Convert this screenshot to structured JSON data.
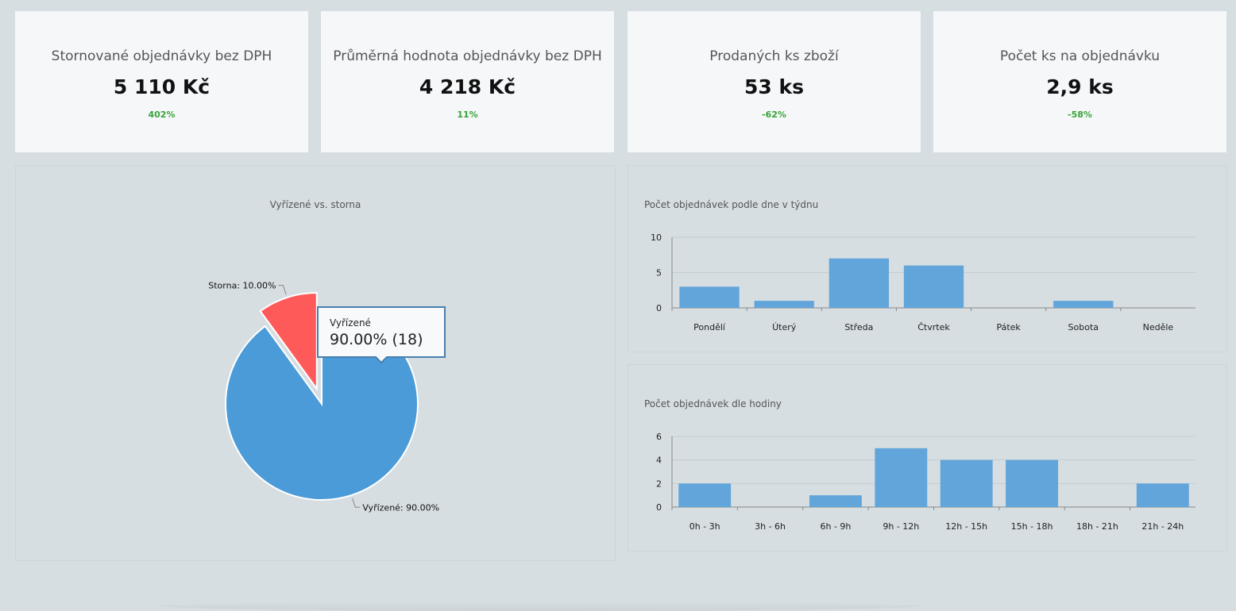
{
  "kpis": [
    {
      "title": "Stornované objednávky bez DPH",
      "value": "5 110 Kč",
      "change": "402%"
    },
    {
      "title": "Průměrná hodnota objednávky bez DPH",
      "value": "4 218 Kč",
      "change": "11%"
    },
    {
      "title": "Prodaných ks zboží",
      "value": "53 ks",
      "change": "-62%"
    },
    {
      "title": "Počet ks na objednávku",
      "value": "2,9 ks",
      "change": "-58%"
    }
  ],
  "colors": {
    "accent_blue": "#4a9bd8",
    "bar_blue": "#62a5da",
    "storno_red": "#ff5a5a",
    "positive_green": "#3aa23a"
  },
  "pie": {
    "title": "Vyřízené vs. storna",
    "tooltip": {
      "label": "Vyřízené",
      "value": "90.00% (18)"
    }
  },
  "chart_data": [
    {
      "type": "pie",
      "title": "Vyřízené vs. storna",
      "slices": [
        {
          "label": "Vyřízené",
          "value": 90.0,
          "count": 18,
          "display": "Vyřízené: 90.00%"
        },
        {
          "label": "Storna",
          "value": 10.0,
          "display": "Storna: 10.00%"
        }
      ]
    },
    {
      "type": "bar",
      "title": "Počet objednávek podle dne v týdnu",
      "categories": [
        "Pondělí",
        "Úterý",
        "Středa",
        "Čtvrtek",
        "Pátek",
        "Sobota",
        "Neděle"
      ],
      "values": [
        3,
        1,
        7,
        6,
        0,
        1,
        0
      ],
      "yticks": [
        "10",
        "5",
        "0"
      ],
      "ylim": [
        0,
        10
      ],
      "grid": true
    },
    {
      "type": "bar",
      "title": "Počet objednávek dle hodiny",
      "categories": [
        "0h - 3h",
        "3h - 6h",
        "6h - 9h",
        "9h - 12h",
        "12h - 15h",
        "15h - 18h",
        "18h - 21h",
        "21h - 24h"
      ],
      "values": [
        2,
        0,
        1,
        5,
        4,
        4,
        0,
        2
      ],
      "yticks": [
        "6",
        "4",
        "2",
        "0"
      ],
      "ylim": [
        0,
        6
      ],
      "grid": true
    }
  ]
}
